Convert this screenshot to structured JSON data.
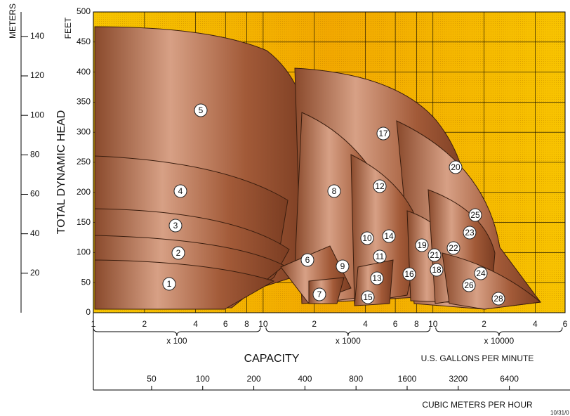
{
  "chart_data": {
    "type": "coverage",
    "y_label": "TOTAL DYNAMIC HEAD",
    "y_unit": "FEET",
    "y2_unit": "METERS",
    "x_label": "CAPACITY",
    "x_unit": "U.S. GALLONS PER MINUTE",
    "x2_label": "CUBIC METERS PER HOUR",
    "note": "10/31/0",
    "log_x": true,
    "grid": true,
    "ylim": [
      0,
      500
    ],
    "yticks": [
      0,
      50,
      100,
      150,
      200,
      250,
      300,
      350,
      400,
      450,
      500
    ],
    "y2lim": [
      0,
      152.4
    ],
    "y2ticks": [
      20,
      40,
      60,
      80,
      100,
      120,
      140
    ],
    "xlim": [
      100,
      60000
    ],
    "xticks": [
      {
        "value": 100,
        "label": "1"
      },
      {
        "value": 200,
        "label": "2"
      },
      {
        "value": 400,
        "label": "4"
      },
      {
        "value": 600,
        "label": "6"
      },
      {
        "value": 800,
        "label": "8"
      },
      {
        "value": 1000,
        "label": "10"
      },
      {
        "value": 2000,
        "label": "2"
      },
      {
        "value": 4000,
        "label": "4"
      },
      {
        "value": 6000,
        "label": "6"
      },
      {
        "value": 8000,
        "label": "8"
      },
      {
        "value": 10000,
        "label": "10"
      },
      {
        "value": 20000,
        "label": "2"
      },
      {
        "value": 40000,
        "label": "4"
      },
      {
        "value": 60000,
        "label": "6"
      }
    ],
    "x_multipliers": [
      "x 100",
      "x 1000",
      "x 10000"
    ],
    "x2lim": [
      22.7,
      13627
    ],
    "x2ticks": [
      50,
      100,
      200,
      400,
      800,
      1600,
      3200,
      6400
    ],
    "regions": [
      "1",
      "2",
      "3",
      "4",
      "5",
      "6",
      "7",
      "8",
      "9",
      "10",
      "11",
      "12",
      "13",
      "14",
      "15",
      "16",
      "17",
      "18",
      "19",
      "20",
      "21",
      "22",
      "23",
      "24",
      "25",
      "26",
      "28"
    ]
  }
}
